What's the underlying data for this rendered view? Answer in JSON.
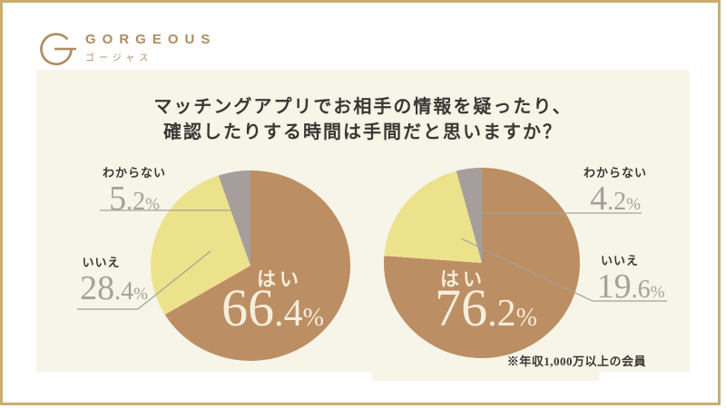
{
  "logo": {
    "name": "GORGEOUS",
    "kana": "ゴージャス"
  },
  "title": {
    "line1": "マッチングアプリでお相手の情報を疑ったり、",
    "line2": "確認したりする時間は手間だと思いますか？"
  },
  "note": "※年収1,000万以上の会員",
  "colors": {
    "frame_gold": "#C9AE6F",
    "panel_cream": "#F7F4E8",
    "slice_yes_brown": "#BC8E63",
    "slice_no_yellow": "#EDE28C",
    "slice_unknown_gray": "#A69E9C",
    "text_dark": "#3B3734",
    "number_gray": "#A5A09B",
    "number_cream": "#F6EEDC",
    "logo_tan": "#AF8C61",
    "leader_line": "#A5A09B"
  },
  "chart_data": [
    {
      "type": "pie",
      "title": "マッチングアプリでお相手の情報を疑ったり、確認したりする時間は手間だと思いますか？",
      "categories": [
        "はい",
        "いいえ",
        "わからない"
      ],
      "values": [
        66.4,
        28.4,
        5.2
      ],
      "colors": [
        "#BC8E63",
        "#EDE28C",
        "#A69E9C"
      ],
      "start": "12-o'clock, clockwise",
      "legend_position": "callout-labels",
      "labels": {
        "hai": {
          "text": "はい",
          "int": "66",
          "frac": ".4",
          "pct": "%"
        },
        "iie": {
          "text": "いいえ",
          "int": "28",
          "frac": ".4",
          "pct": "%"
        },
        "wakaranai": {
          "text": "わからない",
          "int": "5",
          "frac": ".2",
          "pct": "%"
        }
      }
    },
    {
      "type": "pie",
      "title": "マッチングアプリでお相手の情報を疑ったり、確認したりする時間は手間だと思いますか？",
      "note": "※年収1,000万以上の会員",
      "categories": [
        "はい",
        "いいえ",
        "わからない"
      ],
      "values": [
        76.2,
        19.6,
        4.2
      ],
      "colors": [
        "#BC8E63",
        "#EDE28C",
        "#A69E9C"
      ],
      "start": "12-o'clock, clockwise",
      "legend_position": "callout-labels",
      "labels": {
        "hai": {
          "text": "はい",
          "int": "76",
          "frac": ".2",
          "pct": "%"
        },
        "iie": {
          "text": "いいえ",
          "int": "19",
          "frac": ".6",
          "pct": "%"
        },
        "wakaranai": {
          "text": "わからない",
          "int": "4",
          "frac": ".2",
          "pct": "%"
        }
      }
    }
  ]
}
